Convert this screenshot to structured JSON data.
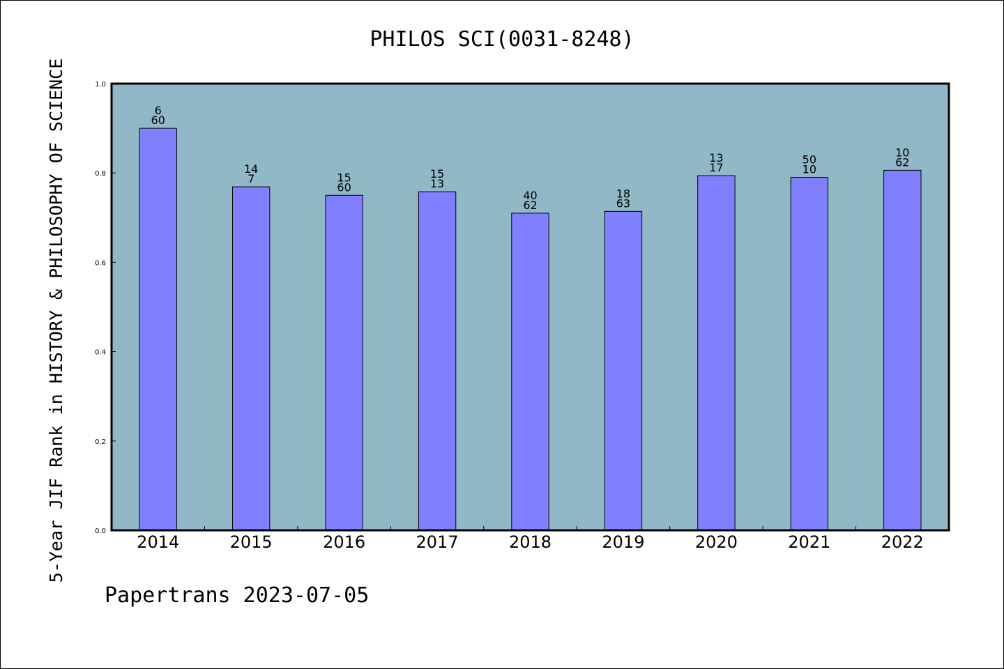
{
  "chart_data": {
    "type": "bar",
    "title": "PHILOS SCI(0031-8248)",
    "xlabel": "",
    "ylabel": "5-Year JIF Rank in HISTORY & PHILOSOPHY OF SCIENCE",
    "categories": [
      "2014",
      "2015",
      "2016",
      "2017",
      "2018",
      "2019",
      "2020",
      "2021",
      "2022"
    ],
    "values": [
      0.9,
      0.769,
      0.75,
      0.758,
      0.71,
      0.714,
      0.794,
      0.79,
      0.806
    ],
    "bar_labels": [
      [
        "6",
        "60"
      ],
      [
        "14",
        "7"
      ],
      [
        "15",
        "60"
      ],
      [
        "15",
        "13"
      ],
      [
        "40",
        "62"
      ],
      [
        "18",
        "63"
      ],
      [
        "13",
        "17"
      ],
      [
        "50",
        "10"
      ],
      [
        "10",
        "62"
      ]
    ],
    "ylim": [
      0,
      1.0
    ],
    "yticks": [
      "0.0",
      "0.2",
      "0.4",
      "0.6",
      "0.8",
      "1.0"
    ],
    "grid": false,
    "colors": {
      "bar": "#8080ff",
      "plot_background": "#91b8c7"
    }
  },
  "footer": "Papertrans 2023-07-05"
}
